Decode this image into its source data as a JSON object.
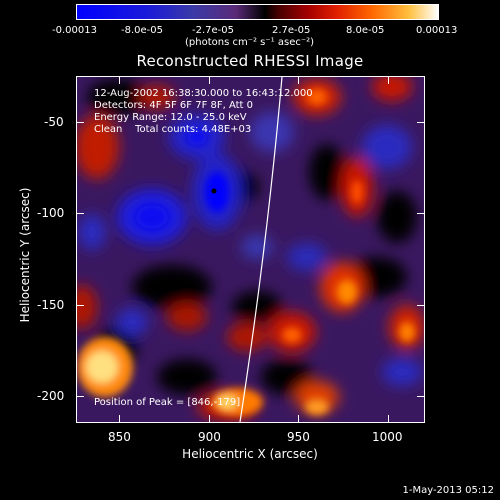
{
  "colorbar": {
    "ticks": [
      "-0.00013",
      "-8.0e-05",
      "-2.7e-05",
      "2.7e-05",
      "8.0e-05",
      "0.00013"
    ],
    "units": "(photons cm⁻² s⁻¹ asec⁻²)"
  },
  "title": "Reconstructed RHESSI Image",
  "info": {
    "time_range": "12-Aug-2002 16:38:30.000 to 16:43:12.000",
    "detectors": "Detectors: 4F 5F 6F 7F 8F, Att 0",
    "energy": "Energy Range: 12.0 - 25.0 keV",
    "clean": "Clean    Total counts: 4.48E+03",
    "peak": "Position of Peak = [846,-179]"
  },
  "axes": {
    "xlabel": "Heliocentric X (arcsec)",
    "ylabel": "Heliocentric Y (arcsec)",
    "xticks": [
      "850",
      "900",
      "950",
      "1000"
    ],
    "yticks": [
      "-50",
      "-100",
      "-150",
      "-200"
    ]
  },
  "timestamp": "1-May-2013 05:12",
  "colors": {
    "strong_negative": "#0000ff",
    "weak_negative": "#5a2a78",
    "zero": "#000000",
    "positive": "#e02000",
    "strong_positive": "#ffffff",
    "limb_line": "#ffffff"
  }
}
